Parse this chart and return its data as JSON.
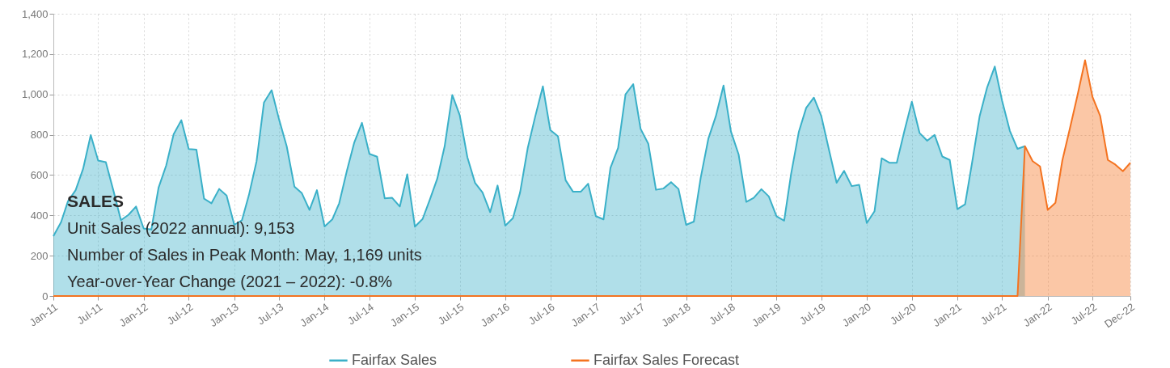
{
  "chart_data": {
    "type": "area",
    "x": [
      "2011-01",
      "2011-02",
      "2011-03",
      "2011-04",
      "2011-05",
      "2011-06",
      "2011-07",
      "2011-08",
      "2011-09",
      "2011-10",
      "2011-11",
      "2011-12",
      "2012-01",
      "2012-02",
      "2012-03",
      "2012-04",
      "2012-05",
      "2012-06",
      "2012-07",
      "2012-08",
      "2012-09",
      "2012-10",
      "2012-11",
      "2012-12",
      "2013-01",
      "2013-02",
      "2013-03",
      "2013-04",
      "2013-05",
      "2013-06",
      "2013-07",
      "2013-08",
      "2013-09",
      "2013-10",
      "2013-11",
      "2013-12",
      "2014-01",
      "2014-02",
      "2014-03",
      "2014-04",
      "2014-05",
      "2014-06",
      "2014-07",
      "2014-08",
      "2014-09",
      "2014-10",
      "2014-11",
      "2014-12",
      "2015-01",
      "2015-02",
      "2015-03",
      "2015-04",
      "2015-05",
      "2015-06",
      "2015-07",
      "2015-08",
      "2015-09",
      "2015-10",
      "2015-11",
      "2015-12",
      "2016-01",
      "2016-02",
      "2016-03",
      "2016-04",
      "2016-05",
      "2016-06",
      "2016-07",
      "2016-08",
      "2016-09",
      "2016-10",
      "2016-11",
      "2016-12",
      "2017-01",
      "2017-02",
      "2017-03",
      "2017-04",
      "2017-05",
      "2017-06",
      "2017-07",
      "2017-08",
      "2017-09",
      "2017-10",
      "2017-11",
      "2017-12",
      "2018-01",
      "2018-02",
      "2018-03",
      "2018-04",
      "2018-05",
      "2018-06",
      "2018-07",
      "2018-08",
      "2018-09",
      "2018-10",
      "2018-11",
      "2018-12",
      "2019-01",
      "2019-02",
      "2019-03",
      "2019-04",
      "2019-05",
      "2019-06",
      "2019-07",
      "2019-08",
      "2019-09",
      "2019-10",
      "2019-11",
      "2019-12",
      "2020-01",
      "2020-02",
      "2020-03",
      "2020-04",
      "2020-05",
      "2020-06",
      "2020-07",
      "2020-08",
      "2020-09",
      "2020-10",
      "2020-11",
      "2020-12",
      "2021-01",
      "2021-02",
      "2021-03",
      "2021-04",
      "2021-05",
      "2021-06",
      "2021-07",
      "2021-08",
      "2021-09",
      "2021-10",
      "2021-11",
      "2021-12",
      "2022-01",
      "2022-02",
      "2022-03",
      "2022-04",
      "2022-05",
      "2022-06",
      "2022-07",
      "2022-08",
      "2022-09",
      "2022-10",
      "2022-11",
      "2022-12"
    ],
    "series": [
      {
        "name": "Fairfax Sales",
        "color": "#3ab0c8",
        "values": [
          297,
          366,
          470,
          525,
          630,
          798,
          672,
          664,
          521,
          376,
          403,
          444,
          335,
          330,
          537,
          648,
          802,
          872,
          729,
          726,
          483,
          460,
          531,
          498,
          353,
          376,
          500,
          668,
          960,
          1021,
          876,
          742,
          543,
          510,
          427,
          525,
          345,
          380,
          460,
          621,
          762,
          859,
          705,
          691,
          484,
          487,
          444,
          604,
          344,
          382,
          474,
          581,
          742,
          997,
          897,
          688,
          561,
          514,
          416,
          548,
          349,
          386,
          514,
          735,
          890,
          1040,
          823,
          792,
          574,
          517,
          517,
          557,
          396,
          380,
          635,
          735,
          1000,
          1051,
          829,
          755,
          527,
          533,
          565,
          531,
          353,
          369,
          588,
          782,
          892,
          1044,
          816,
          702,
          467,
          487,
          530,
          494,
          396,
          374,
          605,
          813,
          933,
          984,
          893,
          726,
          562,
          621,
          545,
          552,
          362,
          420,
          683,
          661,
          661,
          819,
          964,
          809,
          770,
          799,
          692,
          675,
          431,
          455,
          659,
          893,
          1034,
          1138,
          967,
          819,
          730,
          743,
          null,
          null,
          null,
          null,
          null,
          null,
          null,
          null,
          null,
          null,
          null,
          null,
          null,
          null
        ]
      },
      {
        "name": "Fairfax Sales Forecast",
        "color": "#f47320",
        "values": [
          0,
          0,
          0,
          0,
          0,
          0,
          0,
          0,
          0,
          0,
          0,
          0,
          0,
          0,
          0,
          0,
          0,
          0,
          0,
          0,
          0,
          0,
          0,
          0,
          0,
          0,
          0,
          0,
          0,
          0,
          0,
          0,
          0,
          0,
          0,
          0,
          0,
          0,
          0,
          0,
          0,
          0,
          0,
          0,
          0,
          0,
          0,
          0,
          0,
          0,
          0,
          0,
          0,
          0,
          0,
          0,
          0,
          0,
          0,
          0,
          0,
          0,
          0,
          0,
          0,
          0,
          0,
          0,
          0,
          0,
          0,
          0,
          0,
          0,
          0,
          0,
          0,
          0,
          0,
          0,
          0,
          0,
          0,
          0,
          0,
          0,
          0,
          0,
          0,
          0,
          0,
          0,
          0,
          0,
          0,
          0,
          0,
          0,
          0,
          0,
          0,
          0,
          0,
          0,
          0,
          0,
          0,
          0,
          0,
          0,
          0,
          0,
          0,
          0,
          0,
          0,
          0,
          0,
          0,
          0,
          0,
          0,
          0,
          0,
          0,
          0,
          0,
          0,
          0,
          743,
          669,
          643,
          427,
          462,
          672,
          833,
          994,
          1169,
          987,
          893,
          675,
          652,
          619,
          661
        ]
      }
    ],
    "xlim": [
      "2011-01",
      "2022-12"
    ],
    "xticks": [
      {
        "value": "2011-01",
        "label": "Jan-11"
      },
      {
        "value": "2011-07",
        "label": "Jul-11"
      },
      {
        "value": "2012-01",
        "label": "Jan-12"
      },
      {
        "value": "2012-07",
        "label": "Jul-12"
      },
      {
        "value": "2013-01",
        "label": "Jan-13"
      },
      {
        "value": "2013-07",
        "label": "Jul-13"
      },
      {
        "value": "2014-01",
        "label": "Jan-14"
      },
      {
        "value": "2014-07",
        "label": "Jul-14"
      },
      {
        "value": "2015-01",
        "label": "Jan-15"
      },
      {
        "value": "2015-07",
        "label": "Jul-15"
      },
      {
        "value": "2016-01",
        "label": "Jan-16"
      },
      {
        "value": "2016-07",
        "label": "Jul-16"
      },
      {
        "value": "2017-01",
        "label": "Jan-17"
      },
      {
        "value": "2017-07",
        "label": "Jul-17"
      },
      {
        "value": "2018-01",
        "label": "Jan-18"
      },
      {
        "value": "2018-07",
        "label": "Jul-18"
      },
      {
        "value": "2019-01",
        "label": "Jan-19"
      },
      {
        "value": "2019-07",
        "label": "Jul-19"
      },
      {
        "value": "2020-01",
        "label": "Jan-20"
      },
      {
        "value": "2020-07",
        "label": "Jul-20"
      },
      {
        "value": "2021-01",
        "label": "Jan-21"
      },
      {
        "value": "2021-07",
        "label": "Jul-21"
      },
      {
        "value": "2022-01",
        "label": "Jan-22"
      },
      {
        "value": "2022-07",
        "label": "Jul-22"
      },
      {
        "value": "2022-12",
        "label": "Dec-22"
      }
    ],
    "ylim": [
      0,
      1400
    ],
    "yticks": [
      {
        "value": 0,
        "label": "0"
      },
      {
        "value": 200,
        "label": "200"
      },
      {
        "value": 400,
        "label": "400"
      },
      {
        "value": 600,
        "label": "600"
      },
      {
        "value": 800,
        "label": "800"
      },
      {
        "value": 1000,
        "label": "1,000"
      },
      {
        "value": 1200,
        "label": "1,200"
      },
      {
        "value": 1400,
        "label": "1,400"
      }
    ],
    "grid": true,
    "legend": "bottom",
    "annotations": [
      "SALES",
      "Unit Sales (2022 annual): 9,153",
      "Number of Sales in Peak Month: May, 1,169 units",
      "Year-over-Year Change (2021 – 2022): -0.8%"
    ]
  }
}
